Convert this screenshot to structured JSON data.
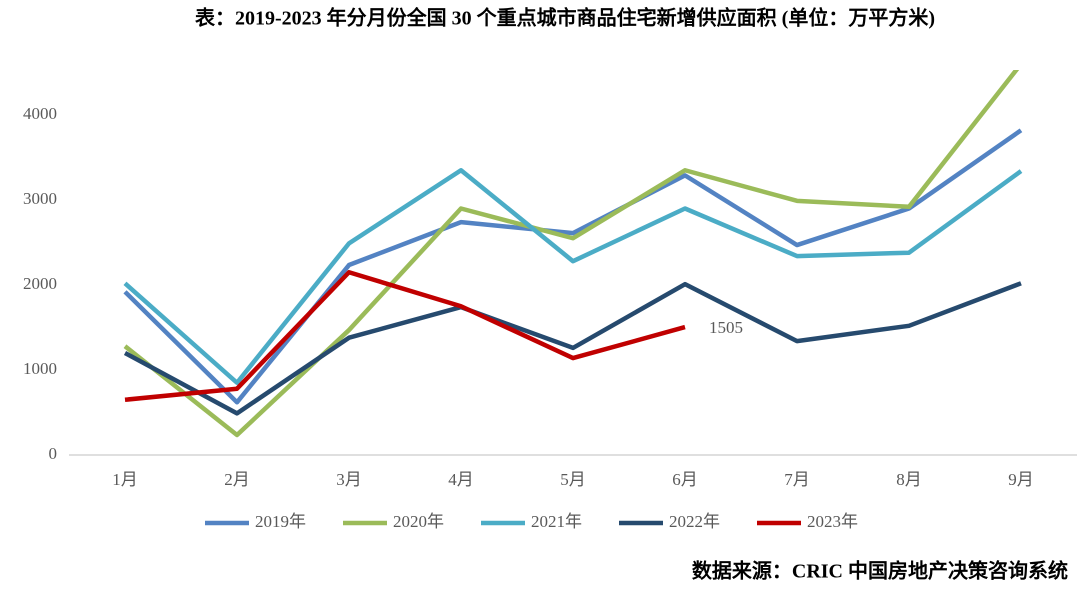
{
  "chart_data": {
    "type": "line",
    "title": "表：2019-2023 年分月份全国 30 个重点城市商品住宅新增供应面积 (单位：万平方米)",
    "source": "数据来源：CRIC 中国房地产决策咨询系统",
    "categories": [
      "1月",
      "2月",
      "3月",
      "4月",
      "5月",
      "6月",
      "7月",
      "8月",
      "9月"
    ],
    "series": [
      {
        "name": "2019年",
        "color": "#5383c3",
        "values": [
          1920,
          620,
          2235,
          2740,
          2610,
          3290,
          2470,
          2900,
          3820
        ]
      },
      {
        "name": "2020年",
        "color": "#9bbb59",
        "values": [
          1280,
          235,
          1470,
          2900,
          2550,
          3350,
          2990,
          2920,
          4600
        ]
      },
      {
        "name": "2021年",
        "color": "#4bacc6",
        "values": [
          2020,
          850,
          2490,
          3350,
          2280,
          2900,
          2340,
          2380,
          3340
        ]
      },
      {
        "name": "2022年",
        "color": "#264a6e",
        "values": [
          1200,
          490,
          1380,
          1740,
          1260,
          2010,
          1340,
          1520,
          2020
        ]
      },
      {
        "name": "2023年",
        "color": "#c00000",
        "values": [
          650,
          780,
          2150,
          1750,
          1140,
          1505,
          null,
          null,
          null
        ]
      }
    ],
    "ylim": [
      0,
      4500
    ],
    "yticks": [
      0,
      1000,
      2000,
      3000,
      4000
    ],
    "grid": false,
    "legend": "bottom"
  }
}
